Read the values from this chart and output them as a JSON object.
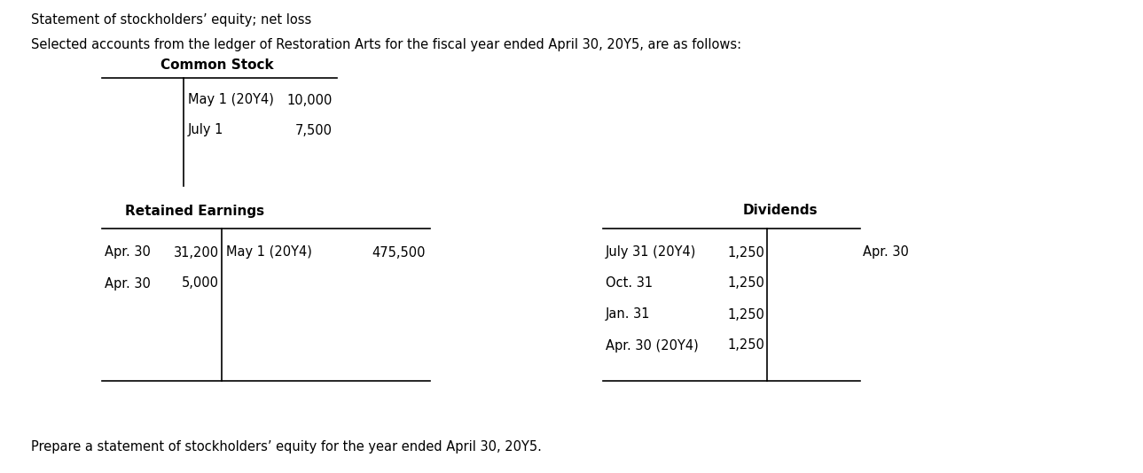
{
  "title_line1": "Statement of stockholders’ equity; net loss",
  "title_line2": "Selected accounts from the ledger of Restoration Arts for the fiscal year ended April 30, 20Y5, are as follows:",
  "footer": "Prepare a statement of stockholders’ equity for the year ended April 30, 20Y5.",
  "common_stock_header": "Common Stock",
  "common_stock_rows": [
    {
      "date": "May 1 (20Y4)",
      "value": "10,000"
    },
    {
      "date": "July 1",
      "value": "7,500"
    }
  ],
  "retained_earnings_header": "Retained Earnings",
  "retained_earnings_left": [
    {
      "date": "Apr. 30",
      "value": "31,200"
    },
    {
      "date": "Apr. 30",
      "value": "5,000"
    }
  ],
  "retained_earnings_right": [
    {
      "date": "May 1 (20Y4)",
      "value": "475,500"
    }
  ],
  "dividends_header": "Dividends",
  "dividends_left": [
    {
      "date": "July 31 (20Y4)",
      "value": "1,250"
    },
    {
      "date": "Oct. 31",
      "value": "1,250"
    },
    {
      "date": "Jan. 31",
      "value": "1,250"
    },
    {
      "date": "Apr. 30 (20Y4)",
      "value": "1,250"
    }
  ],
  "dividends_right_label": "Apr. 30",
  "bg_color": "#ffffff",
  "text_color": "#000000",
  "font_size": 10.5,
  "header_font_size": 11
}
